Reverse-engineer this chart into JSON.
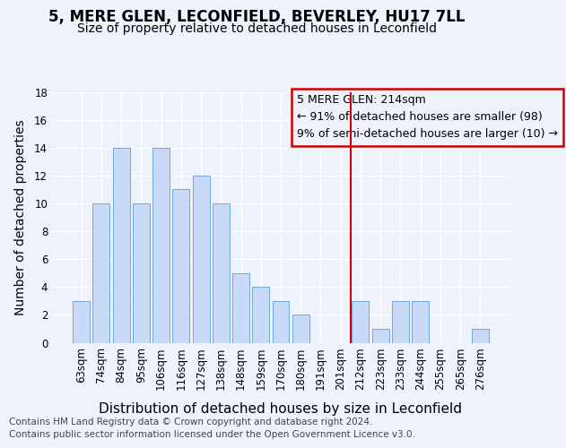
{
  "title": "5, MERE GLEN, LECONFIELD, BEVERLEY, HU17 7LL",
  "subtitle": "Size of property relative to detached houses in Leconfield",
  "xlabel": "Distribution of detached houses by size in Leconfield",
  "ylabel": "Number of detached properties",
  "categories": [
    "63sqm",
    "74sqm",
    "84sqm",
    "95sqm",
    "106sqm",
    "116sqm",
    "127sqm",
    "138sqm",
    "148sqm",
    "159sqm",
    "170sqm",
    "180sqm",
    "191sqm",
    "201sqm",
    "212sqm",
    "223sqm",
    "233sqm",
    "244sqm",
    "255sqm",
    "265sqm",
    "276sqm"
  ],
  "values": [
    3,
    10,
    14,
    10,
    14,
    11,
    12,
    10,
    5,
    4,
    3,
    2,
    0,
    0,
    3,
    1,
    3,
    3,
    0,
    0,
    1
  ],
  "bar_color": "#c9daf8",
  "bar_edge_color": "#6fa8dc",
  "vline_color": "#cc0000",
  "annotation_text": "5 MERE GLEN: 214sqm\n← 91% of detached houses are smaller (98)\n9% of semi-detached houses are larger (10) →",
  "ylim": [
    0,
    18
  ],
  "yticks": [
    0,
    2,
    4,
    6,
    8,
    10,
    12,
    14,
    16,
    18
  ],
  "footer_line1": "Contains HM Land Registry data © Crown copyright and database right 2024.",
  "footer_line2": "Contains public sector information licensed under the Open Government Licence v3.0.",
  "bg_color": "#edf2fb",
  "grid_color": "#ffffff",
  "title_fontsize": 12,
  "subtitle_fontsize": 10,
  "tick_fontsize": 8.5,
  "ylabel_fontsize": 10,
  "xlabel_fontsize": 11,
  "annotation_fontsize": 9,
  "footer_fontsize": 7.5
}
